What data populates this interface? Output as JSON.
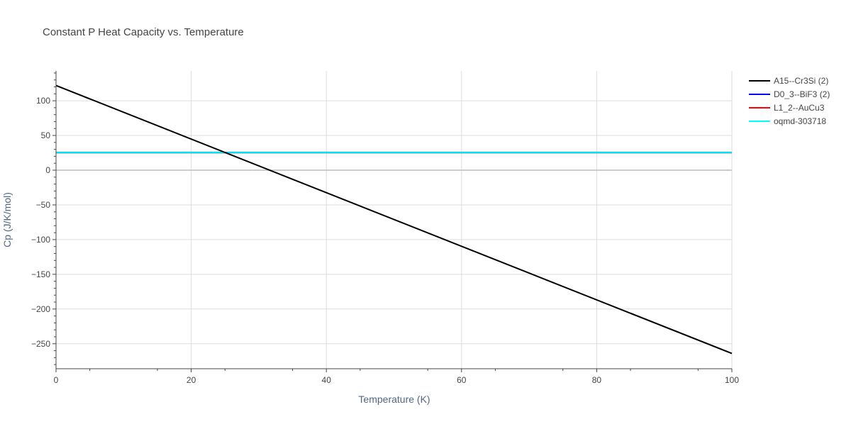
{
  "chart_data": {
    "type": "line",
    "title": "Constant P Heat Capacity vs. Temperature",
    "xlabel": "Temperature (K)",
    "ylabel": "Cp (J/K/mol)",
    "xlim": [
      0,
      100
    ],
    "ylim": [
      -286,
      143
    ],
    "x_ticks": [
      0,
      20,
      40,
      60,
      80,
      100
    ],
    "x_tick_labels": [
      "0",
      "20",
      "40",
      "60",
      "80",
      "100"
    ],
    "y_ticks": [
      100,
      50,
      0,
      -50,
      -100,
      -150,
      -200,
      -250
    ],
    "y_tick_labels": [
      "100",
      "50",
      "0",
      "−50",
      "−100",
      "−150",
      "−200",
      "−250"
    ],
    "grid": true,
    "legend_position": "top-right",
    "series": [
      {
        "name": "A15--Cr3Si (2)",
        "color": "#000000",
        "x": [
          0,
          100
        ],
        "y": [
          122,
          -264
        ]
      },
      {
        "name": "D0_3--BiF3 (2)",
        "color": "#0000ff",
        "x": [
          0,
          100
        ],
        "y": [
          25.5,
          25.5
        ]
      },
      {
        "name": "L1_2--AuCu3",
        "color": "#ff0000",
        "x": [
          0,
          100
        ],
        "y": [
          25,
          25
        ]
      },
      {
        "name": "oqmd-303718",
        "color": "#00ffff",
        "x": [
          0,
          100
        ],
        "y": [
          25.3,
          25.3
        ]
      }
    ]
  }
}
